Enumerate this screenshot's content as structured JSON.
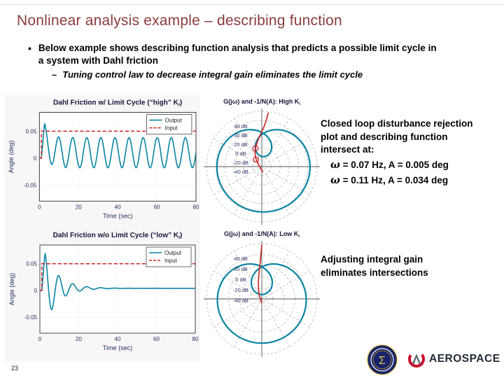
{
  "slide": {
    "title": "Nonlinear analysis example – describing function",
    "bullet_glyph": "•",
    "bullet1": "Below example shows describing function analysis that predicts a possible limit cycle in a system with Dahl friction",
    "dash_glyph": "–",
    "sub_bullet": "Tuning control law to decrease integral gain eliminates the limit cycle",
    "page_number": "23"
  },
  "right_text": {
    "block1": "Closed loop disturbance rejection plot and describing function intersect at:",
    "intersections": [
      {
        "omega": "ω",
        "rest": "= 0.07 Hz, A = 0.005 deg"
      },
      {
        "omega": "ω",
        "rest": "= 0.11 Hz, A = 0.034 deg"
      }
    ],
    "block2": "Adjusting integral gain eliminates intersections"
  },
  "logos": {
    "seal_letter": "Σ",
    "wordmark": "AEROSPACE"
  },
  "chart_data": [
    {
      "id": "time-high-ki",
      "type": "line",
      "title_parts": [
        "Dahl Friction w/ Limit Cycle (“high” K",
        "i",
        ")"
      ],
      "xlabel": "Time (sec)",
      "ylabel": "Angle (deg)",
      "xlim": [
        0,
        80
      ],
      "ylim": [
        -0.08,
        0.085
      ],
      "xticks": [
        0,
        20,
        40,
        60,
        80
      ],
      "yticks": [
        -0.05,
        0,
        0.05
      ],
      "legend": [
        {
          "label": "Output",
          "style": "solid"
        },
        {
          "label": "Input",
          "style": "dashed"
        }
      ],
      "colors": {
        "output": "#0a85a3",
        "input": "#cc2222"
      },
      "input_step": {
        "time": 1,
        "level": 0.05
      },
      "output_wave": {
        "kind": "limit_cycle",
        "rise_start": 1,
        "peak_time": 2.6,
        "initial_peak": 0.065,
        "mean": 0.01,
        "amplitude": 0.028,
        "period": 7.2
      }
    },
    {
      "id": "polar-high-ki",
      "type": "polar",
      "title_parts": [
        "G(jω) and -1/N(A): High K",
        "i",
        ""
      ],
      "db_labels": [
        "40 dB",
        "30 dB",
        "20 dB",
        "0 dB",
        "-20 dB",
        "-40 dB"
      ],
      "colors": {
        "g": "#0a85a3",
        "n": "#cc2222"
      },
      "g_curve": {
        "shape": "limacon",
        "a": 0.5,
        "b": 0.92,
        "origin": [
          0.03,
          0.6
        ]
      },
      "n_curve_points": [
        [
          0.02,
          -0.1
        ],
        [
          -0.06,
          0.04
        ],
        [
          -0.11,
          0.16
        ],
        [
          -0.12,
          0.3
        ],
        [
          -0.06,
          0.5
        ],
        [
          0.05,
          0.75
        ],
        [
          0.12,
          0.98
        ]
      ],
      "intersection_markers": [
        [
          -0.105,
          0.13
        ],
        [
          -0.115,
          0.33
        ]
      ]
    },
    {
      "id": "time-low-ki",
      "type": "line",
      "title_parts": [
        "Dahl Friction w/o Limit Cycle (“low” K",
        "i",
        ")"
      ],
      "xlabel": "Time (sec)",
      "ylabel": "Angle (deg)",
      "xlim": [
        0,
        80
      ],
      "ylim": [
        -0.08,
        0.085
      ],
      "xticks": [
        0,
        20,
        40,
        60,
        80
      ],
      "yticks": [
        -0.05,
        0,
        0.05
      ],
      "legend": [
        {
          "label": "Output",
          "style": "solid"
        },
        {
          "label": "Input",
          "style": "dashed"
        }
      ],
      "colors": {
        "output": "#0a85a3",
        "input": "#cc2222"
      },
      "input_step": {
        "time": 1,
        "level": 0.05
      },
      "output_wave": {
        "kind": "decay",
        "rise_start": 1,
        "peak_time": 2.6,
        "initial_peak": 0.07,
        "settle": 0.004,
        "period": 7.2,
        "tau": 7
      }
    },
    {
      "id": "polar-low-ki",
      "type": "polar",
      "title_parts": [
        "G(jω) and -1/N(A): Low K",
        "i",
        ""
      ],
      "db_labels": [
        "40 dB",
        "20 dB",
        "0 dB",
        "-20 dB",
        "-40 dB"
      ],
      "colors": {
        "g": "#0a85a3",
        "n": "#cc2222"
      },
      "g_curve": {
        "shape": "limacon",
        "a": 0.44,
        "b": 0.94,
        "origin": [
          0.0,
          0.58
        ]
      },
      "n_curve_points": [
        [
          0.0,
          -0.08
        ],
        [
          -0.05,
          0.1
        ],
        [
          -0.06,
          0.35
        ],
        [
          -0.03,
          0.65
        ],
        [
          0.0,
          0.98
        ]
      ],
      "intersection_markers": []
    }
  ]
}
